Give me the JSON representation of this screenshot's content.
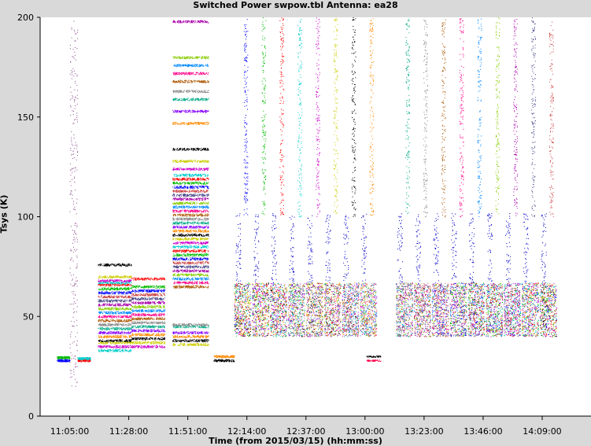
{
  "chart_data": {
    "type": "scatter",
    "title": "Switched Power  swpow.tbl   Antenna: ea28",
    "xlabel": "Time (from 2015/03/15) (hh:mm:ss)",
    "ylabel": "Tsys (K)",
    "ylim": [
      0,
      200
    ],
    "yticks": [
      0,
      50,
      100,
      150,
      200
    ],
    "ytick_labels": [
      "0",
      "50",
      "100",
      "150",
      "200"
    ],
    "xlim": [
      "10:53:30",
      "14:28:00"
    ],
    "xticks": [
      "11:05:00",
      "11:28:00",
      "11:51:00",
      "12:14:00",
      "12:37:00",
      "13:00:00",
      "13:23:00",
      "13:46:00",
      "14:09:00"
    ],
    "grid": false,
    "legend": "none",
    "colors": [
      "#0000ff",
      "#00bb00",
      "#ff0000",
      "#00cccc",
      "#cc00cc",
      "#cccc00",
      "#000000",
      "#ff8800",
      "#8800ff",
      "#00aa88",
      "#888888",
      "#aa5500",
      "#ff0088",
      "#0088ff",
      "#88cc00",
      "#aa00aa",
      "#444488",
      "#cc4444"
    ],
    "segments": [
      {
        "start": "11:00:00",
        "end": "11:05:00",
        "levels": [
          28,
          29.5
        ]
      },
      {
        "start": "11:05:00",
        "end": "11:08:00",
        "levels": [],
        "spike": true
      },
      {
        "start": "11:08:00",
        "end": "11:13:00",
        "levels": [
          28,
          29
        ]
      },
      {
        "start": "11:16:00",
        "end": "11:29:00",
        "levels": [
          33,
          35,
          37,
          38,
          40,
          42,
          44,
          46,
          48,
          50,
          52,
          54,
          56,
          58,
          60,
          62,
          64,
          66,
          67,
          68,
          70,
          76
        ]
      },
      {
        "start": "11:29:00",
        "end": "11:42:00",
        "levels": [
          35,
          37,
          39,
          41,
          43,
          45,
          47,
          49,
          51,
          53,
          55,
          57,
          59,
          61,
          63,
          65,
          69
        ]
      },
      {
        "start": "11:45:00",
        "end": "11:59:00",
        "levels": [
          36,
          38,
          40,
          42,
          45,
          46,
          65,
          67,
          69,
          71,
          73,
          75,
          77,
          79,
          81,
          83,
          85,
          87,
          89,
          91,
          93,
          95,
          97,
          99,
          101,
          103,
          105,
          107,
          109,
          111,
          113,
          115,
          117,
          119,
          121,
          124,
          128,
          134,
          147,
          153,
          159,
          163,
          168,
          172,
          176,
          180,
          198
        ]
      },
      {
        "start": "12:01:00",
        "end": "12:09:00",
        "levels": [
          28,
          30
        ]
      }
    ],
    "cycles": {
      "first_start": "12:09:00",
      "period_minutes": 7,
      "count": 18,
      "gap": [
        "13:00:00",
        "13:06:00"
      ],
      "low_band": [
        40,
        67
      ],
      "high_band": [
        100,
        200
      ]
    },
    "late_segment": {
      "start": "13:00:30",
      "end": "13:06:00",
      "levels": [
        28,
        30
      ]
    }
  }
}
